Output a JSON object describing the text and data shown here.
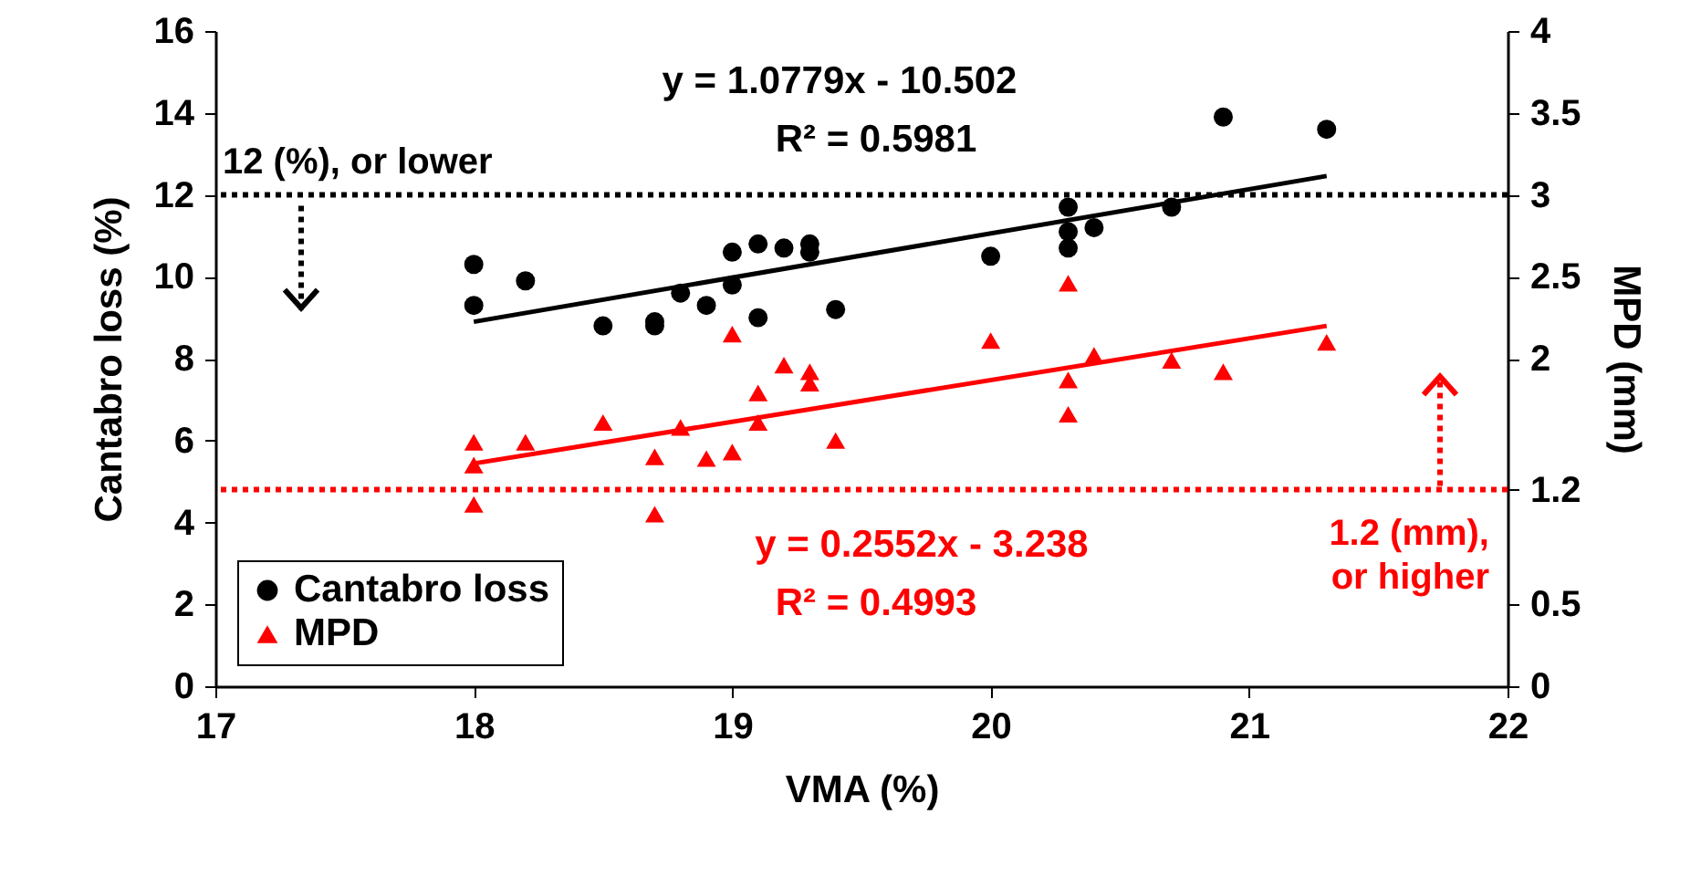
{
  "chart_data": {
    "type": "scatter",
    "xlabel": "VMA (%)",
    "ylabel": "Cantabro loss  (%)",
    "y2label": "MPD (mm)",
    "xlim": [
      17,
      22
    ],
    "xticks": [
      17,
      18,
      19,
      20,
      21,
      22
    ],
    "ylim": [
      0,
      16
    ],
    "yticks": [
      0,
      2,
      4,
      6,
      8,
      10,
      12,
      14,
      16
    ],
    "y2lim": [
      0,
      4
    ],
    "y2ticks": [
      0,
      0.5,
      {
        "value": 1.2,
        "label": "1.2"
      },
      2,
      2.5,
      3,
      3.5,
      4
    ],
    "grid": false,
    "legend": "bottom left",
    "series": [
      {
        "name": "Cantabro loss",
        "marker": "circle",
        "color": "#000000",
        "x": [
          18.0,
          18.0,
          18.2,
          18.5,
          18.7,
          18.7,
          18.8,
          18.9,
          19.0,
          19.0,
          19.1,
          19.1,
          19.2,
          19.3,
          19.3,
          19.4,
          20.0,
          20.3,
          20.3,
          20.3,
          20.4,
          20.7,
          20.9,
          21.3
        ],
        "values": [
          10.3,
          9.3,
          9.9,
          8.8,
          8.9,
          8.8,
          9.6,
          9.3,
          10.6,
          9.8,
          10.8,
          9.0,
          10.7,
          10.8,
          10.6,
          9.2,
          10.5,
          11.7,
          11.1,
          10.7,
          11.2,
          11.7,
          13.9,
          13.6
        ]
      },
      {
        "name": "MPD",
        "marker": "triangle",
        "axis": "y2",
        "color": "#ff0000",
        "x": [
          18.0,
          18.0,
          18.0,
          18.2,
          18.5,
          18.7,
          18.7,
          18.8,
          18.9,
          19.0,
          19.0,
          19.1,
          19.1,
          19.2,
          19.3,
          19.3,
          19.4,
          20.0,
          20.3,
          20.3,
          20.3,
          20.4,
          20.7,
          20.9,
          21.3
        ],
        "values": [
          1.49,
          1.35,
          1.11,
          1.49,
          1.61,
          1.4,
          1.05,
          1.58,
          1.39,
          2.15,
          1.43,
          1.79,
          1.61,
          1.96,
          1.92,
          1.85,
          1.5,
          2.11,
          2.46,
          1.87,
          1.66,
          2.02,
          1.99,
          1.92,
          2.1
        ]
      },
      {
        "type": "line",
        "color": "#000000",
        "x": [
          18.0,
          21.3
        ],
        "values": [
          8.9,
          12.46
        ]
      },
      {
        "type": "line",
        "axis": "y2",
        "color": "#ff0000",
        "x": [
          18.0,
          21.3
        ],
        "values": [
          1.36,
          2.2
        ]
      }
    ],
    "ref_lines": [
      {
        "axis": "y",
        "value": 12,
        "label": "12 (%), or lower",
        "color": "#000000",
        "line_style": "dotted"
      },
      {
        "axis": "y2",
        "value": 1.2,
        "label": "1.2 (mm),\nor higher",
        "color": "#ff0000",
        "line_style": "dotted"
      }
    ],
    "annotations": [
      "y = 1.0779x - 10.502",
      "R² = 0.5981",
      "y = 0.2552x - 3.238",
      "R² = 0.4993"
    ]
  }
}
